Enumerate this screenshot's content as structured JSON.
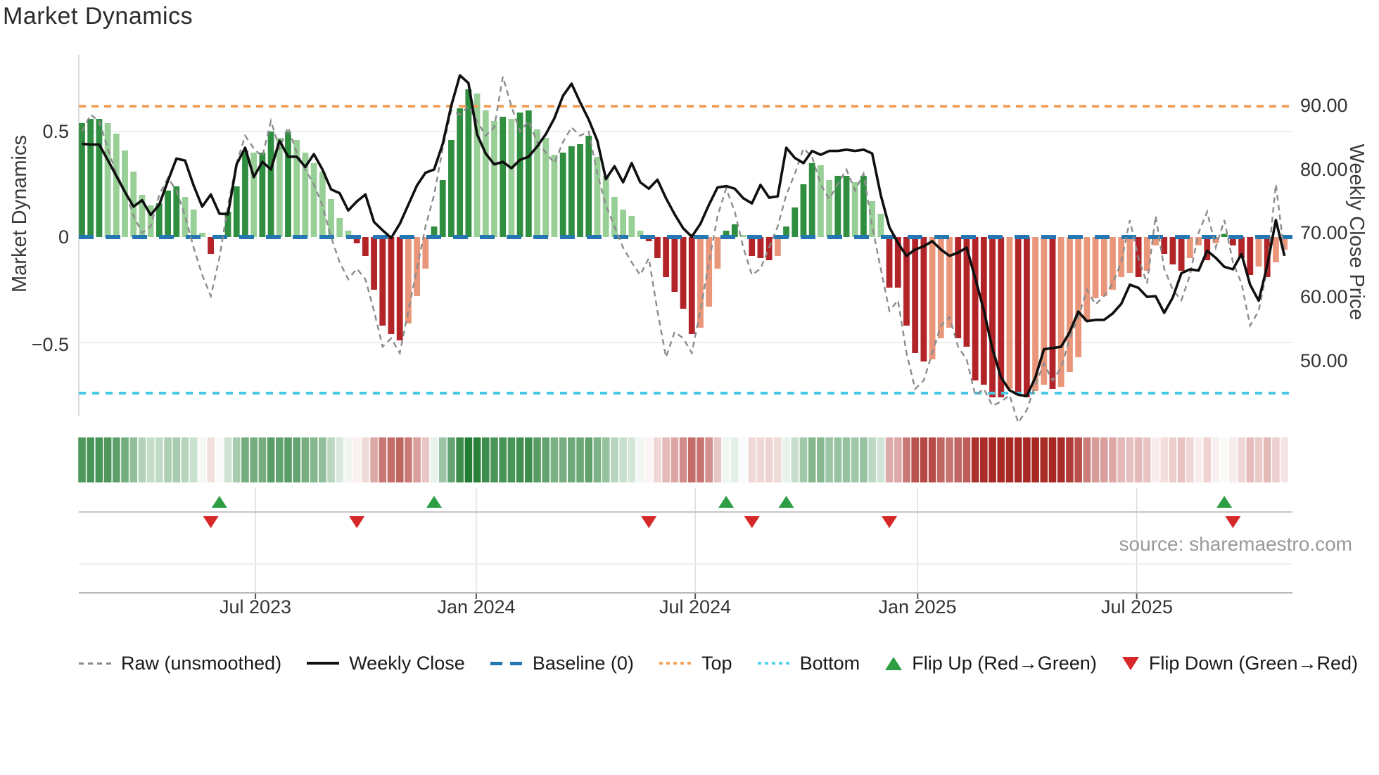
{
  "title": "Market Dynamics",
  "source": "source: sharemaestro.com",
  "legend": {
    "items": [
      {
        "label": "Raw (unsmoothed)",
        "swatch": "gray-dashed-line"
      },
      {
        "label": "Weekly Close",
        "swatch": "black-solid-line"
      },
      {
        "label": "Baseline (0)",
        "swatch": "blue-dashed-line"
      },
      {
        "label": "Top",
        "swatch": "orange-dotted-line"
      },
      {
        "label": "Bottom",
        "swatch": "cyan-dotted-line"
      },
      {
        "label": "Flip Up (Red→Green)",
        "swatch": "green-up-triangle"
      },
      {
        "label": "Flip Down (Green→Red)",
        "swatch": "red-down-triangle"
      }
    ]
  },
  "chart_data": {
    "type": "bar",
    "subtype": "oscillator-with-price-overlay-heatmap-and-flip-markers",
    "title": "Market Dynamics",
    "left_axis": {
      "title": "Market Dynamics",
      "ticks": [
        {
          "label": "0.5",
          "value": 0.5
        },
        {
          "label": "0",
          "value": 0
        },
        {
          "label": "−0.5",
          "value": -0.5
        }
      ],
      "range": [
        -0.92,
        0.92
      ]
    },
    "right_axis": {
      "title": "Weekly Close Price",
      "ticks": [
        {
          "label": "90.00",
          "value": 90
        },
        {
          "label": "80.00",
          "value": 80
        },
        {
          "label": "70.00",
          "value": 70
        },
        {
          "label": "60.00",
          "value": 60
        },
        {
          "label": "50.00",
          "value": 50
        }
      ]
    },
    "x_axis": {
      "ticks": [
        {
          "label": "Jul 2023",
          "week": 20.2
        },
        {
          "label": "Jan 2024",
          "week": 45.9
        },
        {
          "label": "Jul 2024",
          "week": 71.4
        },
        {
          "label": "Jan 2025",
          "week": 97.3
        },
        {
          "label": "Jul 2025",
          "week": 122.8
        }
      ]
    },
    "thresholds": {
      "baseline": 0,
      "top": 0.62,
      "bottom": -0.74
    },
    "grid": true,
    "legend_position": "bottom",
    "series": [
      {
        "name": "Market Dynamics (smoothed bars)",
        "values": [
          0.54,
          0.56,
          0.56,
          0.54,
          0.49,
          0.41,
          0.31,
          0.2,
          0.15,
          0.16,
          0.22,
          0.24,
          0.19,
          0.13,
          0.02,
          -0.08,
          0.01,
          0.12,
          0.24,
          0.41,
          0.4,
          0.4,
          0.5,
          0.47,
          0.5,
          0.46,
          0.4,
          0.35,
          0.31,
          0.18,
          0.09,
          0.03,
          -0.03,
          -0.09,
          -0.25,
          -0.42,
          -0.46,
          -0.49,
          -0.41,
          -0.28,
          -0.15,
          0.05,
          0.27,
          0.46,
          0.61,
          0.7,
          0.68,
          0.6,
          0.55,
          0.57,
          0.56,
          0.59,
          0.6,
          0.51,
          0.47,
          0.39,
          0.4,
          0.43,
          0.44,
          0.48,
          0.38,
          0.29,
          0.19,
          0.13,
          0.1,
          0.03,
          -0.02,
          -0.1,
          -0.19,
          -0.26,
          -0.34,
          -0.46,
          -0.43,
          -0.33,
          -0.15,
          0.03,
          0.06,
          0.01,
          -0.09,
          -0.1,
          -0.11,
          -0.09,
          0.05,
          0.14,
          0.25,
          0.35,
          0.34,
          0.27,
          0.29,
          0.29,
          0.26,
          0.29,
          0.17,
          0.11,
          -0.24,
          -0.24,
          -0.42,
          -0.55,
          -0.59,
          -0.58,
          -0.48,
          -0.43,
          -0.48,
          -0.52,
          -0.68,
          -0.7,
          -0.76,
          -0.76,
          -0.72,
          -0.75,
          -0.76,
          -0.73,
          -0.7,
          -0.72,
          -0.71,
          -0.64,
          -0.57,
          -0.4,
          -0.29,
          -0.28,
          -0.25,
          -0.19,
          -0.17,
          -0.19,
          -0.16,
          -0.04,
          -0.08,
          -0.13,
          -0.16,
          -0.1,
          -0.04,
          -0.11,
          -0.03,
          0.015,
          -0.04,
          -0.1,
          -0.18,
          -0.14,
          -0.19,
          -0.12,
          -0.06
        ]
      },
      {
        "name": "Raw (unsmoothed)",
        "values": [
          0.5,
          0.58,
          0.55,
          0.42,
          0.3,
          0.22,
          0.1,
          0.02,
          0.05,
          0.2,
          0.28,
          0.22,
          0.1,
          -0.05,
          -0.18,
          -0.28,
          -0.1,
          0.15,
          0.35,
          0.48,
          0.42,
          0.38,
          0.55,
          0.42,
          0.52,
          0.4,
          0.32,
          0.25,
          0.15,
          0.0,
          -0.12,
          -0.2,
          -0.15,
          -0.2,
          -0.35,
          -0.52,
          -0.48,
          -0.55,
          -0.35,
          -0.15,
          0.05,
          0.2,
          0.42,
          0.6,
          0.58,
          0.62,
          0.55,
          0.48,
          0.52,
          0.76,
          0.62,
          0.5,
          0.55,
          0.45,
          0.4,
          0.35,
          0.45,
          0.52,
          0.48,
          0.5,
          0.3,
          0.15,
          0.05,
          -0.05,
          -0.12,
          -0.18,
          -0.1,
          -0.35,
          -0.57,
          -0.45,
          -0.48,
          -0.55,
          -0.35,
          -0.12,
          0.1,
          0.23,
          0.12,
          -0.05,
          -0.18,
          -0.15,
          -0.05,
          0.05,
          0.2,
          0.3,
          0.42,
          0.38,
          0.25,
          0.18,
          0.25,
          0.32,
          0.22,
          0.3,
          0.05,
          -0.15,
          -0.35,
          -0.3,
          -0.55,
          -0.72,
          -0.68,
          -0.55,
          -0.42,
          -0.38,
          -0.52,
          -0.58,
          -0.75,
          -0.72,
          -0.8,
          -0.78,
          -0.75,
          -0.88,
          -0.82,
          -0.7,
          -0.6,
          -0.68,
          -0.62,
          -0.48,
          -0.38,
          -0.25,
          -0.32,
          -0.28,
          -0.22,
          -0.12,
          0.08,
          -0.1,
          -0.22,
          0.1,
          -0.15,
          -0.25,
          -0.3,
          -0.18,
          0.02,
          0.12,
          -0.05,
          0.08,
          -0.12,
          -0.22,
          -0.42,
          -0.35,
          -0.15,
          0.25,
          -0.08
        ]
      },
      {
        "name": "Weekly Close",
        "axis": "right",
        "values": [
          84.0,
          83.9,
          83.9,
          81.5,
          79.0,
          76.5,
          74.2,
          75.2,
          72.9,
          74.5,
          78.2,
          81.7,
          81.4,
          77.5,
          74.2,
          76.1,
          73.1,
          73.0,
          80.8,
          83.4,
          78.8,
          81.2,
          80.0,
          84.5,
          82.0,
          82.0,
          80.4,
          82.4,
          80.0,
          76.9,
          76.3,
          73.6,
          75.0,
          76.1,
          71.8,
          70.5,
          69.3,
          71.5,
          74.5,
          77.5,
          79.5,
          80.0,
          84.0,
          90.0,
          94.7,
          93.5,
          85.5,
          82.5,
          80.8,
          81.2,
          80.2,
          81.5,
          82.0,
          83.6,
          85.5,
          88.0,
          91.5,
          93.4,
          90.5,
          87.8,
          84.5,
          78.5,
          80.5,
          78.0,
          81.0,
          78.0,
          77.0,
          78.4,
          75.5,
          73.0,
          70.8,
          69.5,
          71.5,
          74.5,
          77.2,
          77.4,
          77.0,
          75.5,
          74.7,
          77.6,
          75.6,
          75.8,
          83.4,
          81.8,
          81.0,
          82.9,
          82.3,
          82.9,
          82.9,
          83.1,
          82.9,
          83.1,
          82.5,
          76.0,
          71.0,
          68.5,
          66.5,
          67.5,
          68.0,
          68.8,
          67.5,
          66.5,
          67.0,
          67.8,
          63.0,
          58.0,
          52.0,
          47.5,
          45.5,
          44.8,
          44.6,
          47.5,
          51.9,
          52.1,
          52.3,
          54.6,
          57.8,
          56.3,
          56.5,
          56.5,
          57.5,
          59.0,
          62.0,
          61.5,
          60.1,
          60.2,
          57.6,
          60.0,
          63.8,
          64.4,
          64.2,
          67.3,
          66.2,
          64.8,
          64.4,
          66.8,
          62.0,
          59.5,
          65.0,
          72.1,
          66.5
        ]
      }
    ],
    "flips": {
      "up_weeks": [
        16,
        41,
        75,
        82,
        133
      ],
      "down_weeks": [
        15,
        32,
        66,
        78,
        94,
        134
      ]
    },
    "heatmap": "mirrors bar values as green/red intensity strip",
    "colors": {
      "bar_green_dark": "#2f8e3f",
      "bar_green_light": "#97cf97",
      "bar_red_dark": "#b22428",
      "bar_red_light": "#e9967a",
      "baseline_blue": "#2577b2",
      "top_orange": "#f2a25c",
      "bottom_cyan": "#44c8e4",
      "raw_gray": "#8c8c8c",
      "close_black": "#0f0f0f",
      "flip_up_green": "#2d9e44",
      "flip_down_red": "#d62828"
    }
  }
}
